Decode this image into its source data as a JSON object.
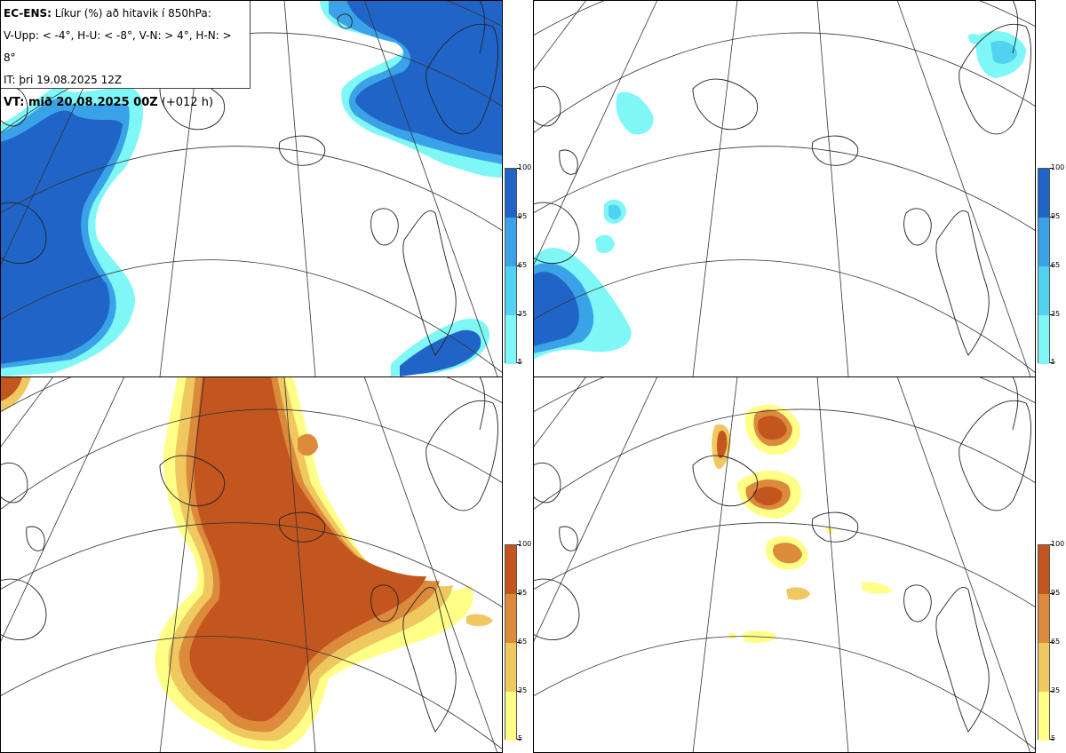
{
  "info": {
    "line1_bold": "EC-ENS:",
    "line1_rest": " Líkur (%) að hitavik í 850hPa:",
    "line2": "V-Upp: < -4°, H-U: < -8°, V-N: > 4°, H-N: > 8°",
    "line3": "IT: þri 19.08.2025 12Z",
    "line4_bold": "VT: mið 20.08.2025 00Z",
    "line4_rest": " (+012 h)"
  },
  "colorbar_ticks": [
    "100",
    "95",
    "65",
    "35",
    "5"
  ],
  "colors": {
    "blue": [
      "#7ff7f7",
      "#4fd3f0",
      "#3aa3e8",
      "#2064c8"
    ],
    "red": [
      "#ffff88",
      "#f0c860",
      "#dc8a3c",
      "#c2561e"
    ],
    "coast": "#222222",
    "grid": "#333333"
  },
  "panels": [
    {
      "name": "V-Upp",
      "palette": "blue",
      "blob_level": "high"
    },
    {
      "name": "H-U",
      "palette": "blue",
      "blob_level": "low"
    },
    {
      "name": "V-N",
      "palette": "red",
      "blob_level": "high"
    },
    {
      "name": "H-N",
      "palette": "red",
      "blob_level": "low"
    }
  ]
}
